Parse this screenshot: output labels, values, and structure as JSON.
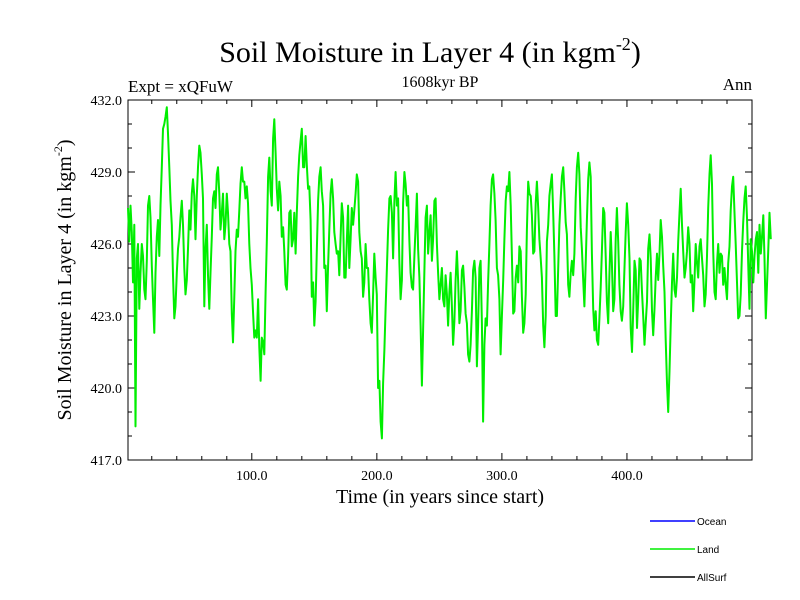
{
  "chart_data": {
    "type": "line",
    "title_main": "Soil Moisture in Layer 4 (in kgm",
    "title_sup": "-2",
    "title_close": ")",
    "subtitle": "1608kyr BP",
    "left_label": "Expt = xQFuW",
    "right_label": "Ann",
    "xlabel": "Time (in years since start)",
    "ylabel_main": "Soil Moisture in Layer 4 (in kgm",
    "ylabel_sup": "-2",
    "ylabel_close": ")",
    "xlim": [
      1,
      500
    ],
    "ylim": [
      417.0,
      432.0
    ],
    "x_ticks": [
      100,
      200,
      300,
      400
    ],
    "x_tick_labels": [
      "100.0",
      "200.0",
      "300.0",
      "400.0"
    ],
    "y_ticks": [
      417,
      420,
      423,
      426,
      429,
      432
    ],
    "y_tick_labels": [
      "417.0",
      "420.0",
      "423.0",
      "426.0",
      "429.0",
      "432.0"
    ],
    "legend": [
      {
        "name": "Ocean",
        "color": "#0000ff"
      },
      {
        "name": "Land",
        "color": "#00ee00"
      },
      {
        "name": "AllSurf",
        "color": "#000000"
      }
    ],
    "series": [
      {
        "name": "Land",
        "color": "#00ee00",
        "x_start": 1,
        "x_step": 1,
        "values": [
          427.5,
          426.1,
          427.6,
          426.5,
          424.4,
          426.8,
          418.4,
          425.4,
          426.0,
          423.3,
          424.8,
          426.0,
          425.5,
          424.1,
          423.7,
          425.3,
          427.6,
          428.0,
          427.1,
          425.1,
          423.7,
          422.3,
          424.8,
          426.3,
          427.0,
          425.5,
          427.6,
          429.2,
          430.8,
          431.0,
          431.3,
          431.7,
          430.6,
          429.2,
          427.8,
          426.8,
          424.7,
          422.9,
          423.4,
          424.8,
          425.8,
          426.3,
          427.1,
          427.8,
          426.8,
          425.0,
          423.9,
          424.5,
          425.8,
          427.4,
          426.6,
          428.1,
          428.7,
          428.0,
          426.2,
          428.0,
          429.2,
          430.1,
          429.8,
          428.9,
          427.9,
          423.4,
          425.8,
          426.8,
          424.7,
          423.3,
          424.8,
          426.3,
          427.9,
          428.2,
          427.5,
          428.9,
          429.2,
          428.1,
          426.6,
          427.3,
          428.1,
          426.2,
          426.8,
          428.1,
          427.3,
          426.0,
          425.7,
          423.1,
          421.9,
          423.8,
          425.7,
          426.6,
          426.3,
          427.4,
          428.5,
          429.2,
          428.6,
          428.6,
          427.9,
          428.4,
          427.7,
          426.0,
          425.0,
          424.3,
          423.1,
          422.1,
          422.4,
          422.1,
          423.7,
          421.7,
          420.3,
          422.1,
          421.9,
          421.4,
          424.0,
          426.1,
          428.8,
          429.6,
          428.2,
          427.6,
          430.4,
          431.2,
          429.8,
          428.3,
          427.4,
          428.6,
          428.0,
          426.3,
          426.7,
          425.7,
          424.3,
          424.1,
          425.5,
          427.3,
          427.4,
          425.9,
          426.2,
          427.3,
          425.6,
          427.3,
          428.8,
          429.7,
          430.3,
          430.8,
          429.2,
          429.2,
          430.5,
          429.3,
          428.3,
          428.4,
          427.0,
          423.8,
          424.4,
          422.6,
          423.6,
          425.7,
          427.8,
          428.8,
          429.2,
          428.2,
          427.6,
          425.0,
          425.1,
          423.2,
          425.1,
          426.6,
          428.1,
          428.7,
          427.9,
          426.5,
          426.0,
          425.6,
          425.7,
          424.7,
          426.3,
          427.7,
          427.1,
          424.6,
          424.6,
          426.1,
          427.6,
          425.0,
          426.2,
          427.5,
          426.8,
          427.4,
          428.1,
          428.9,
          428.6,
          426.5,
          425.7,
          425.4,
          423.8,
          424.4,
          426.0,
          425.0,
          425.0,
          423.7,
          422.7,
          422.3,
          423.9,
          425.6,
          424.6,
          423.9,
          420.0,
          420.3,
          418.6,
          417.9,
          420.2,
          421.6,
          423.3,
          425.0,
          426.6,
          427.9,
          428.0,
          427.3,
          425.4,
          427.8,
          429.0,
          427.6,
          427.9,
          425.2,
          423.7,
          424.5,
          427.7,
          429.0,
          428.5,
          427.6,
          428.0,
          426.1,
          424.8,
          424.2,
          424.1,
          425.5,
          426.7,
          428.1,
          425.8,
          424.6,
          422.6,
          420.1,
          422.4,
          424.9,
          427.1,
          427.6,
          425.6,
          426.5,
          427.2,
          425.3,
          426.2,
          427.8,
          427.9,
          426.0,
          424.8,
          423.7,
          424.3,
          425.0,
          423.7,
          423.4,
          424.7,
          423.9,
          422.6,
          424.0,
          424.8,
          423.4,
          421.8,
          422.8,
          424.5,
          425.7,
          424.5,
          422.7,
          423.2,
          424.9,
          425.1,
          424.2,
          423.1,
          422.7,
          421.4,
          421.1,
          421.8,
          423.2,
          424.9,
          425.3,
          424.6,
          420.9,
          422.6,
          425.0,
          425.3,
          422.7,
          418.6,
          421.8,
          422.9,
          422.6,
          424.4,
          426.0,
          427.6,
          428.7,
          428.9,
          428.1,
          427.0,
          425.0,
          424.7,
          423.7,
          421.4,
          423.0,
          424.5,
          426.2,
          427.8,
          428.4,
          428.2,
          429.0,
          427.6,
          425.5,
          423.1,
          423.2,
          424.6,
          425.1,
          424.4,
          425.9,
          425.7,
          423.8,
          422.3,
          422.7,
          423.9,
          426.6,
          428.6,
          428.1,
          428.0,
          427.2,
          425.6,
          425.7,
          427.7,
          428.6,
          427.5,
          426.2,
          425.4,
          424.6,
          422.6,
          421.7,
          423.0,
          426.1,
          426.8,
          428.0,
          428.5,
          428.9,
          427.3,
          425.5,
          423.0,
          423.0,
          425.0,
          426.8,
          427.9,
          428.8,
          429.2,
          428.2,
          426.9,
          426.4,
          424.3,
          423.8,
          424.8,
          425.3,
          424.7,
          425.6,
          427.9,
          429.2,
          429.8,
          428.9,
          426.7,
          425.8,
          424.5,
          423.4,
          425.2,
          427.0,
          428.7,
          429.4,
          428.8,
          425.6,
          423.3,
          422.4,
          423.2,
          422.0,
          421.8,
          422.9,
          424.2,
          425.7,
          427.5,
          427.3,
          425.5,
          423.6,
          422.7,
          424.7,
          426.5,
          425.2,
          423.2,
          423.7,
          426.2,
          427.5,
          426.1,
          424.3,
          423.2,
          422.8,
          423.4,
          424.9,
          426.5,
          427.7,
          426.8,
          425.4,
          422.5,
          421.5,
          423.2,
          425.3,
          424.9,
          422.5,
          423.7,
          425.4,
          425.3,
          424.0,
          423.0,
          421.8,
          422.7,
          423.6,
          425.8,
          426.4,
          425.4,
          423.2,
          422.2,
          423.3,
          424.6,
          425.6,
          424.5,
          425.6,
          427.0,
          426.3,
          425.1,
          424.0,
          422.0,
          420.2,
          419.0,
          420.7,
          422.6,
          424.4,
          425.6,
          424.1,
          423.8,
          424.6,
          426.1,
          427.3,
          428.3,
          426.8,
          425.7,
          424.6,
          425.0,
          425.7,
          426.7,
          426.0,
          424.4,
          424.7,
          423.2,
          424.5,
          426.0,
          425.2,
          424.6,
          425.9,
          426.2,
          425.4,
          424.7,
          423.4,
          423.9,
          425.5,
          427.5,
          428.9,
          429.7,
          428.5,
          425.7,
          424.0,
          423.7,
          425.2,
          426.0,
          424.8,
          425.6,
          425.5,
          424.3,
          425.0,
          424.3,
          423.7,
          425.2,
          425.9,
          427.4,
          428.4,
          428.8,
          427.3,
          426.0,
          424.4,
          422.9,
          423.0,
          423.9,
          425.7,
          426.9,
          427.9,
          428.4,
          427.1,
          425.2,
          423.3,
          426.2,
          425.7,
          424.4,
          425.5,
          426.2,
          426.5,
          424.8,
          426.8,
          425.6,
          426.3,
          427.2,
          425.4,
          422.9,
          424.3,
          425.8,
          427.3,
          426.2
        ]
      }
    ]
  }
}
